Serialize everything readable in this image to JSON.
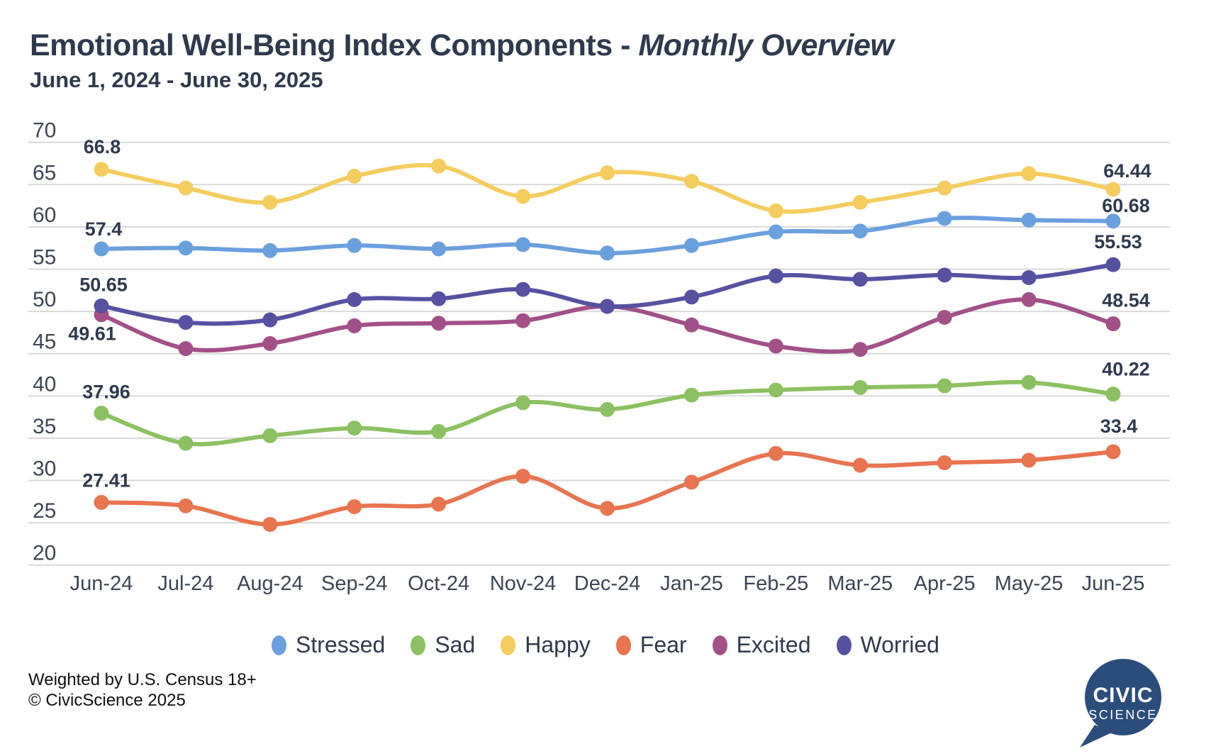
{
  "title": {
    "main": "Emotional Well-Being Index Components - ",
    "emphasis": "Monthly Overview"
  },
  "subtitle": "June 1, 2024 - June 30, 2025",
  "footer": {
    "line1": "Weighted by U.S. Census 18+",
    "line2": "© CivicScience 2025"
  },
  "logo": {
    "line1": "CIVIC",
    "line2": "SCIENCE",
    "color": "#2a4d7c"
  },
  "colors": {
    "grid": "#d9d9d9",
    "axis_text": "#3b4555",
    "label_text": "#2f3a4d",
    "background": "#ffffff"
  },
  "chart_data": {
    "type": "line",
    "title": "Emotional Well-Being Index Components - Monthly Overview",
    "subtitle": "June 1, 2024 - June 30, 2025",
    "categories": [
      "Jun-24",
      "Jul-24",
      "Aug-24",
      "Sep-24",
      "Oct-24",
      "Nov-24",
      "Dec-24",
      "Jan-25",
      "Feb-25",
      "Mar-25",
      "Apr-25",
      "May-25",
      "Jun-25"
    ],
    "ylim": [
      20,
      70
    ],
    "ytick_step": 5,
    "grid": true,
    "legend_position": "bottom",
    "series": [
      {
        "name": "Stressed",
        "color": "#6ba0de",
        "values": [
          57.4,
          57.5,
          57.2,
          57.8,
          57.4,
          57.9,
          56.9,
          57.8,
          59.4,
          59.5,
          61.0,
          60.8,
          60.68
        ],
        "first": {
          "text": "57.4",
          "dx": 3,
          "dy": -28
        },
        "last": {
          "text": "60.68",
          "dx": 18,
          "dy": -22
        }
      },
      {
        "name": "Sad",
        "color": "#8bc162",
        "values": [
          37.96,
          34.4,
          35.3,
          36.2,
          35.8,
          39.2,
          38.4,
          40.1,
          40.7,
          41.0,
          41.2,
          41.6,
          40.22
        ],
        "first": {
          "text": "37.96",
          "dx": 7,
          "dy": -30
        },
        "last": {
          "text": "40.22",
          "dx": 18,
          "dy": -35
        }
      },
      {
        "name": "Happy",
        "color": "#f5cd5f",
        "values": [
          66.8,
          64.6,
          62.9,
          66.0,
          67.2,
          63.6,
          66.4,
          65.4,
          61.9,
          62.9,
          64.6,
          66.3,
          64.44
        ],
        "first": {
          "text": "66.8",
          "dx": 1,
          "dy": -32
        },
        "last": {
          "text": "64.44",
          "dx": 20,
          "dy": -26
        }
      },
      {
        "name": "Fear",
        "color": "#e87450",
        "values": [
          27.41,
          27.0,
          24.8,
          26.9,
          27.2,
          30.5,
          26.7,
          29.8,
          33.2,
          31.8,
          32.1,
          32.4,
          33.4
        ],
        "first": {
          "text": "27.41",
          "dx": 7,
          "dy": -31
        },
        "last": {
          "text": "33.4",
          "dx": 8,
          "dy": -36
        }
      },
      {
        "name": "Excited",
        "color": "#a35089",
        "values": [
          49.61,
          45.6,
          46.2,
          48.3,
          48.6,
          48.9,
          50.6,
          48.4,
          45.9,
          45.5,
          49.3,
          51.4,
          48.54
        ],
        "first": {
          "text": "49.61",
          "dx": -13,
          "dy": 27
        },
        "last": {
          "text": "48.54",
          "dx": 18,
          "dy": -33
        }
      },
      {
        "name": "Worried",
        "color": "#5751a1",
        "values": [
          50.65,
          48.7,
          49.0,
          51.4,
          51.5,
          52.6,
          50.6,
          51.7,
          54.2,
          53.8,
          54.3,
          54.0,
          55.53
        ],
        "first": {
          "text": "50.65",
          "dx": 3,
          "dy": -30
        },
        "last": {
          "text": "55.53",
          "dx": 7,
          "dy": -32
        }
      }
    ]
  }
}
